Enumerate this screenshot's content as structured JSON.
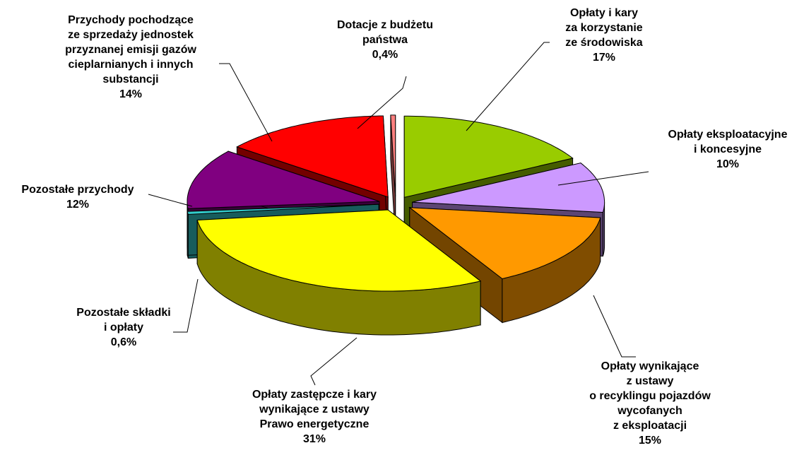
{
  "chart_data": {
    "type": "pie",
    "categories": [
      "Opłaty i kary\nza korzystanie\nze środowiska",
      "Opłaty eksploatacyjne\ni koncesyjne",
      "Opłaty wynikające\nz ustawy\no recyklingu pojazdów\nwycofanych\nz eksploatacji",
      "Opłaty zastępcze i kary\nwynikające z ustawy\nPrawo energetyczne",
      "Pozostałe składki\ni opłaty",
      "Pozostałe przychody",
      "Przychody pochodzące\nze sprzedaży jednostek\nprzyznanej emisji gazów\ncieplarnianych i innych\nsubstancji",
      "Dotacje z budżetu\npaństwa"
    ],
    "values": [
      17,
      10,
      15,
      31,
      0.6,
      12,
      14,
      0.4
    ],
    "value_labels": [
      "17%",
      "10%",
      "15%",
      "31%",
      "0,6%",
      "12%",
      "14%",
      "0,4%"
    ],
    "colors": [
      "#99cc00",
      "#cc99ff",
      "#ff9900",
      "#ffff00",
      "#33cccc",
      "#800080",
      "#ff0000",
      "#ff8080"
    ]
  }
}
